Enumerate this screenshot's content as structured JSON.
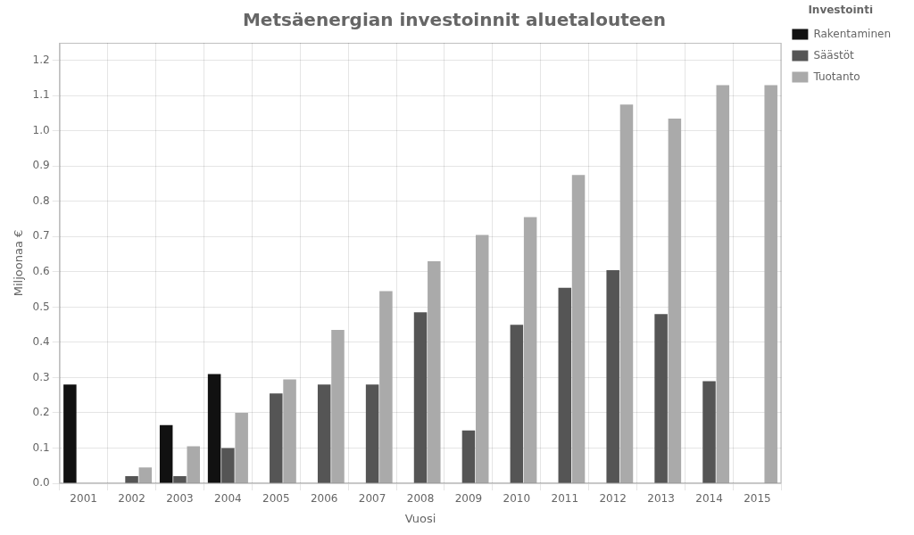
{
  "chart_data": {
    "type": "bar",
    "title": "Metsäenergian investoinnit aluetalouteen",
    "xlabel": "Vuosi",
    "ylabel": "Miljoonaa €",
    "legend_title": "Investointi",
    "legend": "right",
    "grid": true,
    "categories": [
      "2001",
      "2002",
      "2003",
      "2004",
      "2005",
      "2006",
      "2007",
      "2008",
      "2009",
      "2010",
      "2011",
      "2012",
      "2013",
      "2014",
      "2015"
    ],
    "series": [
      {
        "name": "Rakentaminen",
        "color": "#111111",
        "values": [
          0.28,
          0.0,
          0.165,
          0.31,
          0.0,
          0.0,
          0.0,
          0.0,
          0.0,
          0.0,
          0.0,
          0.0,
          0.0,
          0.0,
          0.0
        ]
      },
      {
        "name": "Säästöt",
        "color": "#555555",
        "values": [
          0.0,
          0.02,
          0.02,
          0.1,
          0.255,
          0.28,
          0.28,
          0.485,
          0.15,
          0.45,
          0.555,
          0.605,
          0.48,
          0.29,
          0.0
        ]
      },
      {
        "name": "Tuotanto",
        "color": "#aaaaaa",
        "values": [
          0.0,
          0.045,
          0.105,
          0.2,
          0.295,
          0.435,
          0.545,
          0.63,
          0.705,
          0.755,
          0.875,
          1.075,
          1.035,
          1.13,
          1.13
        ]
      }
    ],
    "ylim": [
      0,
      1.25
    ],
    "yticks": [
      {
        "value": 0.0,
        "label": "0.0"
      },
      0.1,
      0.2,
      0.3,
      0.4,
      0.5,
      0.6,
      0.7,
      0.8,
      0.9,
      {
        "value": 1.0,
        "label": "1.0"
      },
      1.1,
      1.2
    ]
  }
}
